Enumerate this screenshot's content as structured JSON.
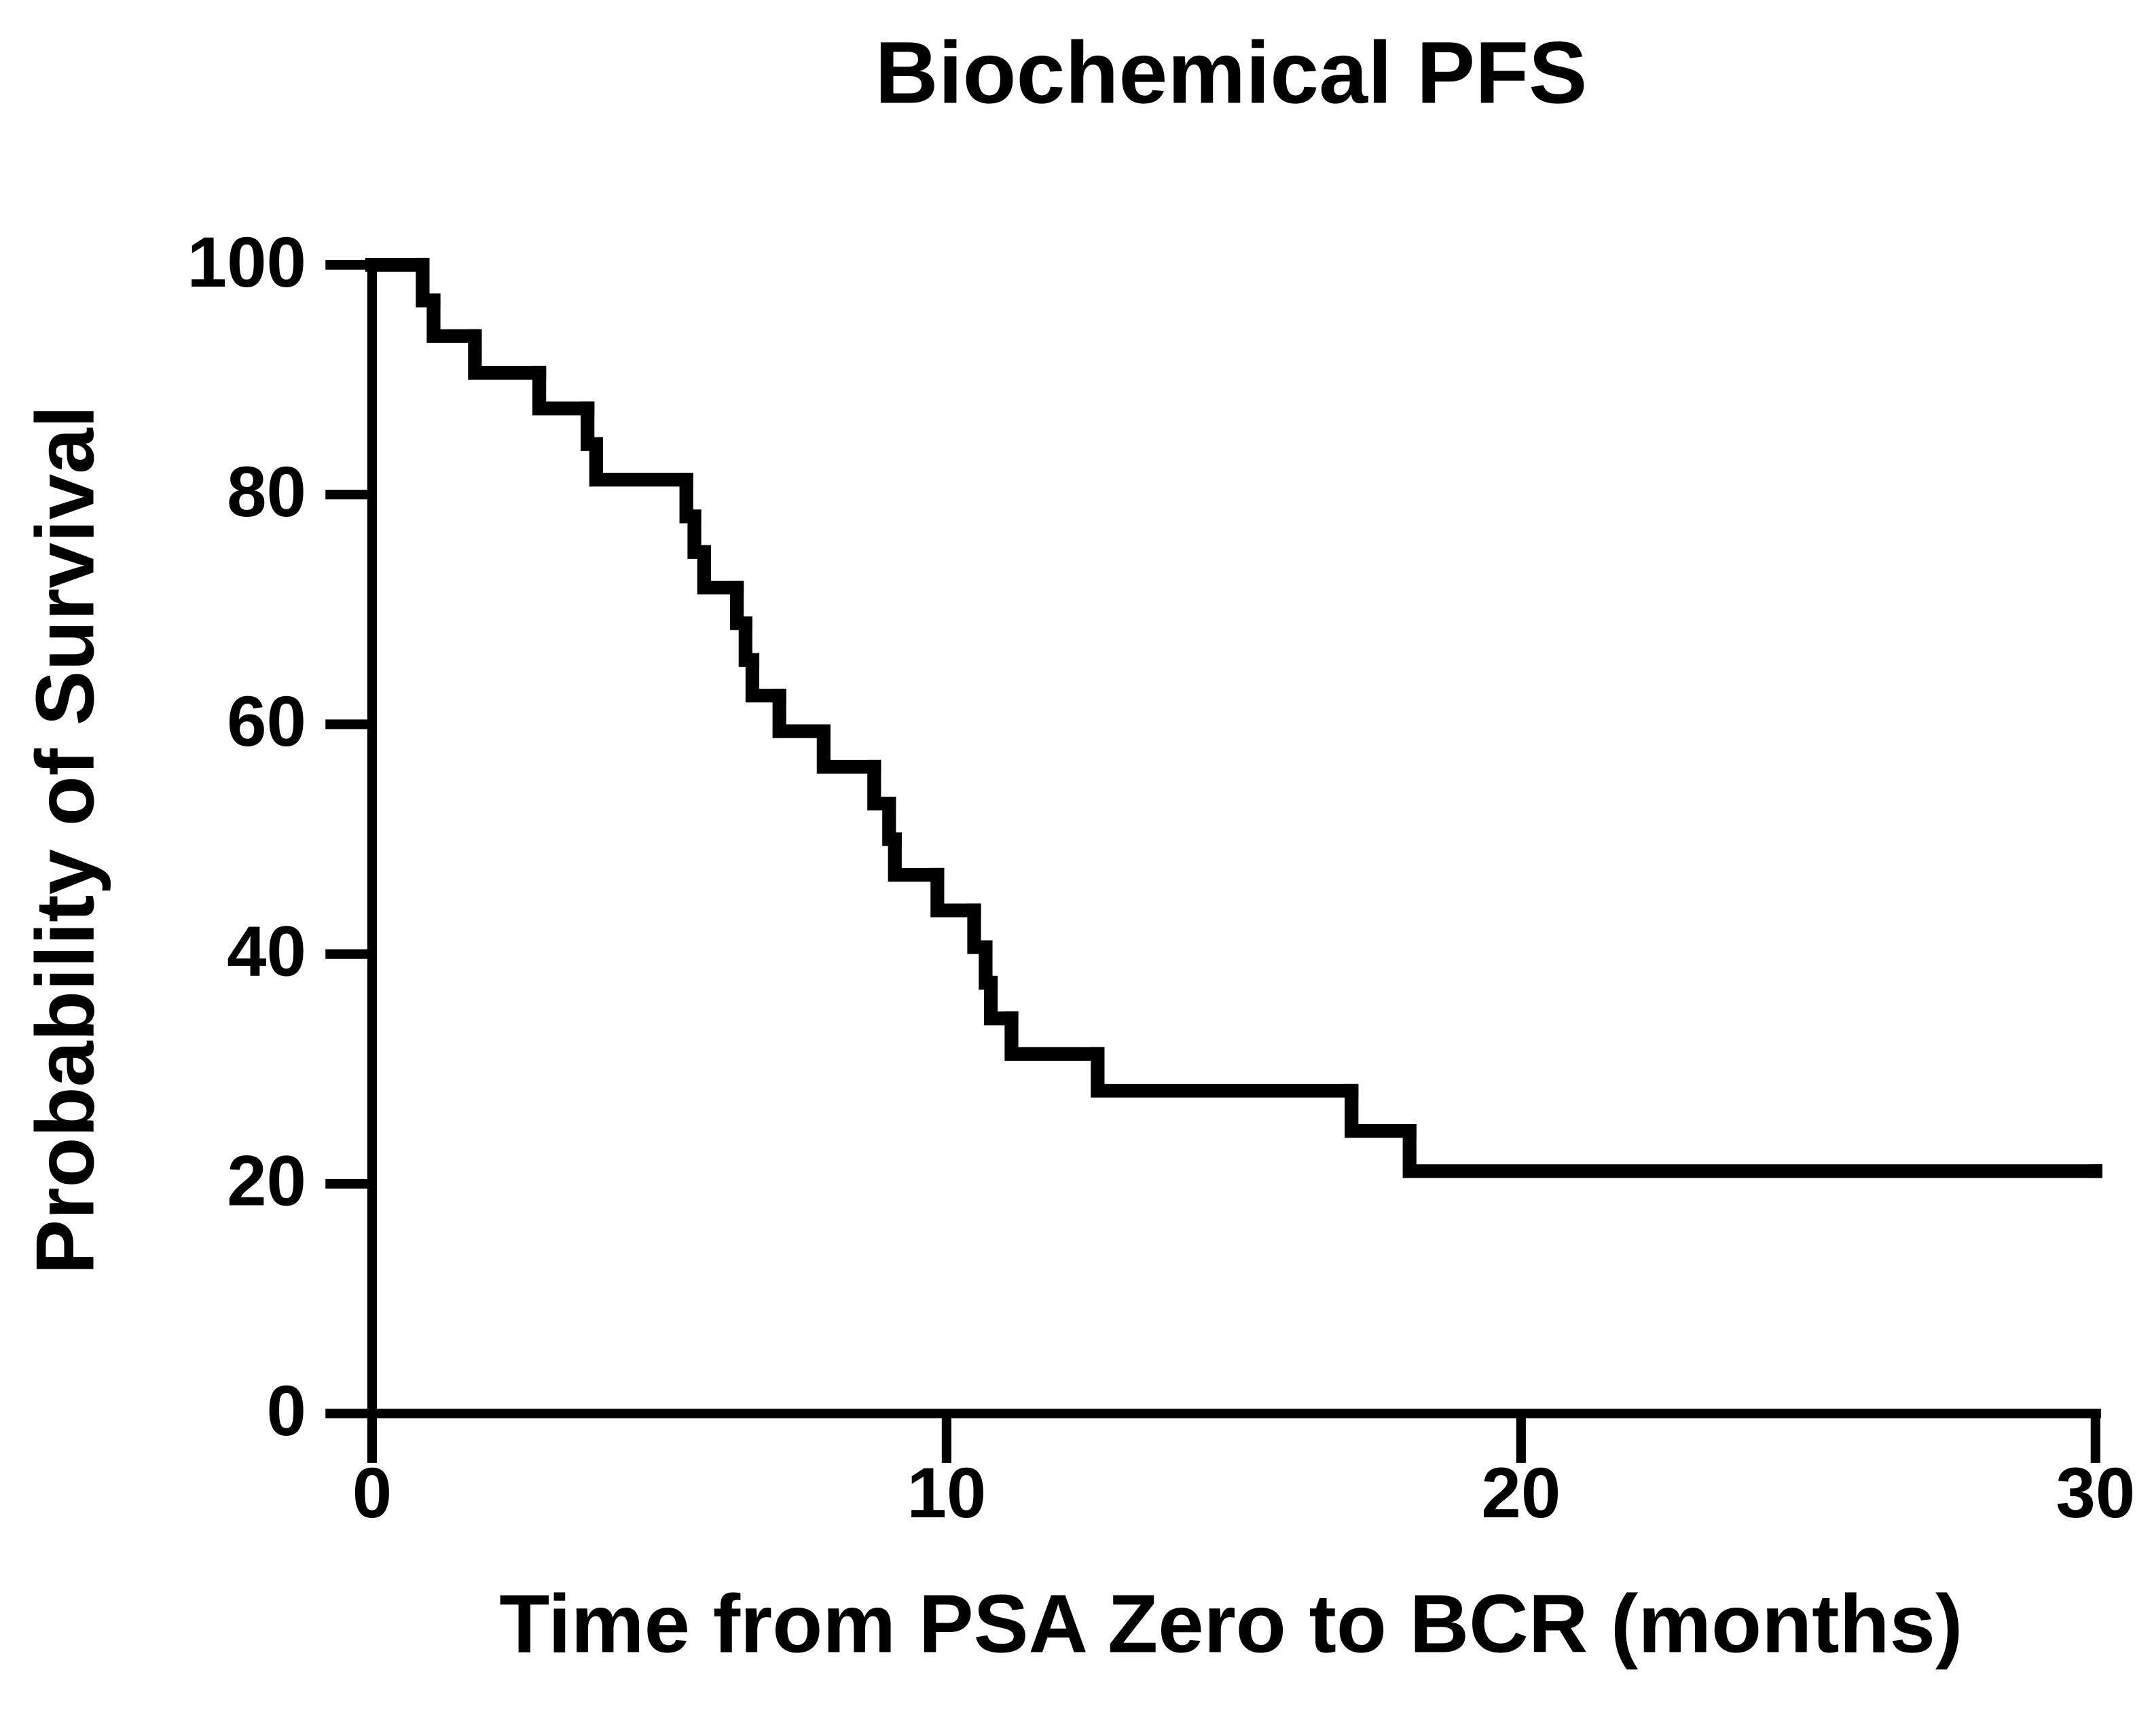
{
  "chart_data": {
    "type": "line",
    "drawstyle": "steps-post",
    "title": "Biochemical PFS",
    "x_label": "Time from PSA Zero to BCR (months)",
    "y_label": "Probability of Survival",
    "x": [
      0,
      0.88,
      1.07,
      1.79,
      2.91,
      3.75,
      3.9,
      5.47,
      5.61,
      5.78,
      6.35,
      6.5,
      6.62,
      7.09,
      7.86,
      8.74,
      9.0,
      9.1,
      9.84,
      10.48,
      10.68,
      10.77,
      11.13,
      12.63,
      17.05,
      18.06,
      30
    ],
    "values": [
      100,
      96.9,
      93.8,
      90.6,
      87.5,
      84.4,
      81.3,
      78.1,
      75,
      71.9,
      68.8,
      65.6,
      62.5,
      59.4,
      56.3,
      53.1,
      50,
      46.9,
      43.8,
      40.6,
      37.5,
      34.4,
      31.3,
      28.1,
      24.6,
      21.1,
      21.1
    ],
    "color": "#000000",
    "xlim": [
      0,
      30
    ],
    "ylim": [
      0,
      100
    ],
    "xticks": [
      0,
      10,
      20,
      30
    ],
    "yticks": [
      0,
      20,
      40,
      60,
      80,
      100
    ],
    "grid": false
  }
}
